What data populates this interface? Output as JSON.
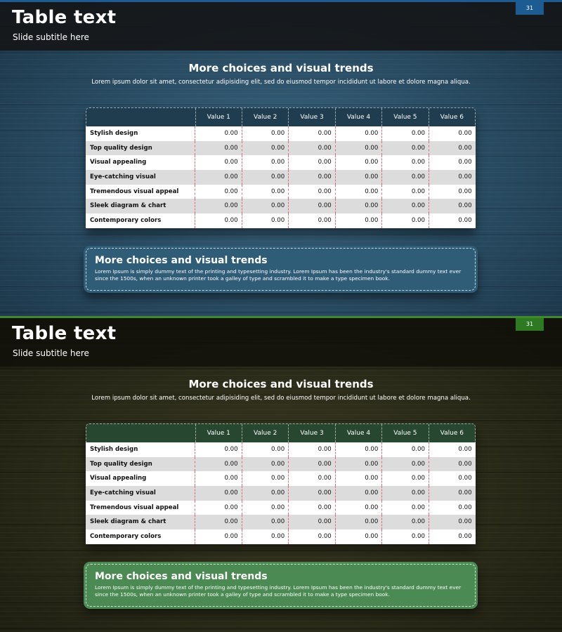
{
  "slides": [
    {
      "theme": "blue",
      "accent_color": "#1c5c93",
      "page_number": "31",
      "title": "Table text",
      "subtitle": "Slide subtitle here",
      "section_heading": "More choices and visual trends",
      "section_description": "Lorem ipsum dolor sit amet, consectetur adipisiding elit, sed do eiusmod tempor incididunt ut labore et dolore magna aliqua.",
      "table": {
        "columns": [
          "Value 1",
          "Value 2",
          "Value 3",
          "Value 4",
          "Value 5",
          "Value 6"
        ],
        "rows": [
          {
            "label": "Stylish design",
            "values": [
              "0.00",
              "0.00",
              "0.00",
              "0.00",
              "0.00",
              "0.00"
            ]
          },
          {
            "label": "Top quality design",
            "values": [
              "0.00",
              "0.00",
              "0.00",
              "0.00",
              "0.00",
              "0.00"
            ]
          },
          {
            "label": "Visual appealing",
            "values": [
              "0.00",
              "0.00",
              "0.00",
              "0.00",
              "0.00",
              "0.00"
            ]
          },
          {
            "label": "Eye-catching visual",
            "values": [
              "0.00",
              "0.00",
              "0.00",
              "0.00",
              "0.00",
              "0.00"
            ]
          },
          {
            "label": "Tremendous visual appeal",
            "values": [
              "0.00",
              "0.00",
              "0.00",
              "0.00",
              "0.00",
              "0.00"
            ]
          },
          {
            "label": "Sleek diagram & chart",
            "values": [
              "0.00",
              "0.00",
              "0.00",
              "0.00",
              "0.00",
              "0.00"
            ]
          },
          {
            "label": "Contemporary colors",
            "values": [
              "0.00",
              "0.00",
              "0.00",
              "0.00",
              "0.00",
              "0.00"
            ]
          }
        ]
      },
      "info_box": {
        "title": "More choices and visual trends",
        "text": "Lorem Ipsum is simply dummy text of the printing and typesetting industry. Lorem Ipsum has been the industry's standard dummy text ever since the 1500s, when an unknown printer took a galley of type and scrambled it to make a type specimen book."
      }
    },
    {
      "theme": "green",
      "accent_color": "#2e7a23",
      "page_number": "31",
      "title": "Table text",
      "subtitle": "Slide subtitle here",
      "section_heading": "More choices and visual trends",
      "section_description": "Lorem ipsum dolor sit amet, consectetur adipisiding elit, sed do eiusmod tempor incididunt ut labore et dolore magna aliqua.",
      "table": {
        "columns": [
          "Value 1",
          "Value 2",
          "Value 3",
          "Value 4",
          "Value 5",
          "Value 6"
        ],
        "rows": [
          {
            "label": "Stylish design",
            "values": [
              "0.00",
              "0.00",
              "0.00",
              "0.00",
              "0.00",
              "0.00"
            ]
          },
          {
            "label": "Top quality design",
            "values": [
              "0.00",
              "0.00",
              "0.00",
              "0.00",
              "0.00",
              "0.00"
            ]
          },
          {
            "label": "Visual appealing",
            "values": [
              "0.00",
              "0.00",
              "0.00",
              "0.00",
              "0.00",
              "0.00"
            ]
          },
          {
            "label": "Eye-catching visual",
            "values": [
              "0.00",
              "0.00",
              "0.00",
              "0.00",
              "0.00",
              "0.00"
            ]
          },
          {
            "label": "Tremendous visual appeal",
            "values": [
              "0.00",
              "0.00",
              "0.00",
              "0.00",
              "0.00",
              "0.00"
            ]
          },
          {
            "label": "Sleek diagram & chart",
            "values": [
              "0.00",
              "0.00",
              "0.00",
              "0.00",
              "0.00",
              "0.00"
            ]
          },
          {
            "label": "Contemporary colors",
            "values": [
              "0.00",
              "0.00",
              "0.00",
              "0.00",
              "0.00",
              "0.00"
            ]
          }
        ]
      },
      "info_box": {
        "title": "More choices and visual trends",
        "text": "Lorem Ipsum is simply dummy text of the printing and typesetting industry. Lorem Ipsum has been the industry's standard dummy text ever since the 1500s, when an unknown printer took a galley of type and scrambled it to make a type specimen book."
      }
    }
  ]
}
